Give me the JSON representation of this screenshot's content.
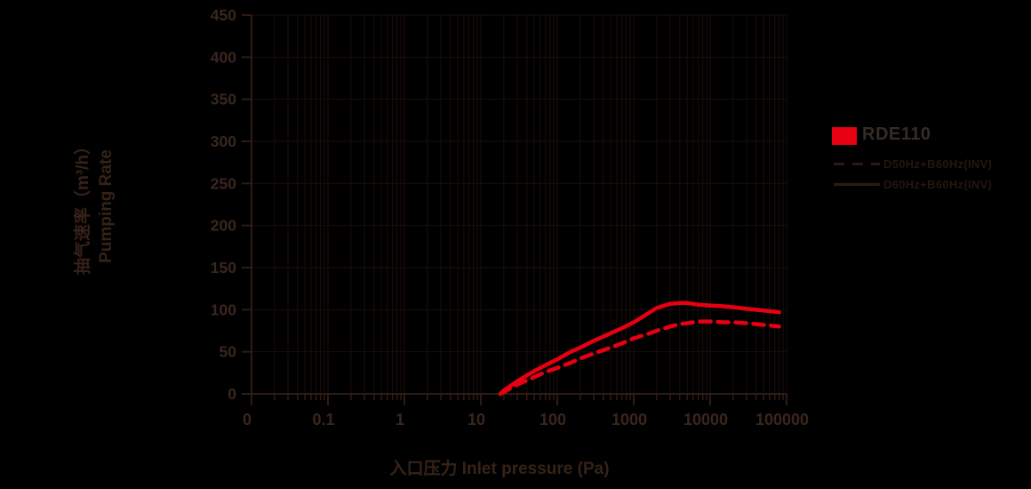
{
  "colors": {
    "background": "#000000",
    "accent_red": "#e60012",
    "grid": "#1a0e0a",
    "axis": "#2e1c14",
    "tick_text": "#3a261e",
    "title_text": "#362218",
    "legend_title_text": "#352c28",
    "legend_entry_text": "#241611",
    "legend_line": "#2c1b14"
  },
  "chart_data": {
    "type": "line",
    "title": "",
    "xlabel": "入口压力 Inlet pressure (Pa)",
    "ylabel_line1": "抽气速率（m³/h）",
    "ylabel_line2": "Pumping Rate",
    "x_scale": "log",
    "x_ticks": [
      "0",
      "0.1",
      "1",
      "10",
      "100",
      "1000",
      "10000",
      "100000"
    ],
    "y_ticks": [
      0,
      50,
      100,
      150,
      200,
      250,
      300,
      350,
      400,
      450
    ],
    "ylim": [
      0,
      450
    ],
    "grid": "on",
    "legend": {
      "position": "right",
      "title": "RDE110",
      "entries": [
        {
          "label": "D50Hz+B60Hz(INV)",
          "style": "dashed"
        },
        {
          "label": "D60Hz+B60Hz(INV)",
          "style": "solid"
        }
      ]
    },
    "series": [
      {
        "name": "D60Hz+B60Hz(INV)",
        "style": "solid",
        "color": "#e60012",
        "points": [
          [
            18,
            0
          ],
          [
            20,
            4
          ],
          [
            25,
            10
          ],
          [
            30,
            15
          ],
          [
            40,
            22
          ],
          [
            50,
            27
          ],
          [
            70,
            34
          ],
          [
            100,
            41
          ],
          [
            150,
            50
          ],
          [
            200,
            55
          ],
          [
            300,
            63
          ],
          [
            500,
            72
          ],
          [
            700,
            78
          ],
          [
            1000,
            85
          ],
          [
            1500,
            95
          ],
          [
            2000,
            102
          ],
          [
            3000,
            107
          ],
          [
            4000,
            108
          ],
          [
            5000,
            108
          ],
          [
            7000,
            106
          ],
          [
            10000,
            105
          ],
          [
            15000,
            104
          ],
          [
            20000,
            103
          ],
          [
            30000,
            101
          ],
          [
            50000,
            99
          ],
          [
            80000,
            97
          ]
        ]
      },
      {
        "name": "D50Hz+B60Hz(INV)",
        "style": "dashed",
        "color": "#e60012",
        "points": [
          [
            18,
            0
          ],
          [
            20,
            2
          ],
          [
            25,
            7
          ],
          [
            30,
            11
          ],
          [
            40,
            16
          ],
          [
            50,
            20
          ],
          [
            70,
            26
          ],
          [
            100,
            31
          ],
          [
            150,
            37
          ],
          [
            200,
            42
          ],
          [
            300,
            48
          ],
          [
            500,
            55
          ],
          [
            700,
            60
          ],
          [
            1000,
            66
          ],
          [
            1500,
            71
          ],
          [
            2000,
            75
          ],
          [
            3000,
            80
          ],
          [
            4000,
            83
          ],
          [
            5000,
            84
          ],
          [
            7000,
            86
          ],
          [
            10000,
            86
          ],
          [
            15000,
            85
          ],
          [
            20000,
            85
          ],
          [
            30000,
            84
          ],
          [
            50000,
            82
          ],
          [
            80000,
            80
          ]
        ]
      }
    ]
  }
}
